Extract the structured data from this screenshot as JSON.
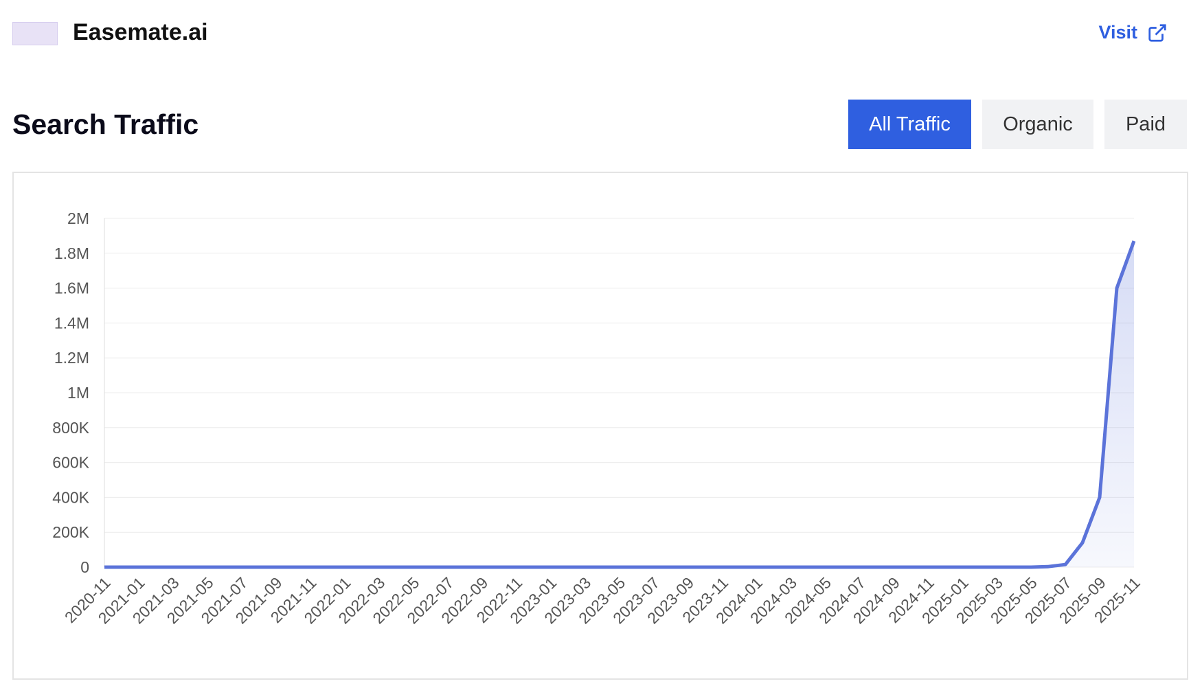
{
  "header": {
    "title": "Easemate.ai",
    "visit": "Visit"
  },
  "section_title": "Search Traffic",
  "tabs": [
    "All Traffic",
    "Organic",
    "Paid"
  ],
  "chart_data": {
    "type": "area",
    "color": "#5b73d9",
    "grid": true,
    "categories": [
      "2020-11",
      null,
      "2021-01",
      null,
      "2021-03",
      null,
      "2021-05",
      null,
      "2021-07",
      null,
      "2021-09",
      null,
      "2021-11",
      null,
      "2022-01",
      null,
      "2022-03",
      null,
      "2022-05",
      null,
      "2022-07",
      null,
      "2022-09",
      null,
      "2022-11",
      null,
      "2023-01",
      null,
      "2023-03",
      null,
      "2023-05",
      null,
      "2023-07",
      null,
      "2023-09",
      null,
      "2023-11",
      null,
      "2024-01",
      null,
      "2024-03",
      null,
      "2024-05",
      null,
      "2024-07",
      null,
      "2024-09",
      null,
      "2024-11",
      null,
      "2025-01",
      null,
      "2025-03",
      null,
      "2025-05",
      null,
      "2025-07",
      null,
      "2025-09",
      null,
      "2025-11"
    ],
    "values": [
      0,
      0,
      0,
      0,
      0,
      0,
      0,
      0,
      0,
      0,
      0,
      0,
      0,
      0,
      0,
      0,
      0,
      0,
      0,
      0,
      0,
      0,
      0,
      0,
      0,
      0,
      0,
      0,
      0,
      0,
      0,
      0,
      0,
      0,
      0,
      0,
      0,
      0,
      0,
      0,
      0,
      0,
      0,
      0,
      0,
      0,
      0,
      0,
      0,
      0,
      0,
      0,
      0,
      0,
      0,
      3000,
      15000,
      140000,
      400000,
      1600000,
      1870000
    ],
    "ylim": [
      0,
      2000000
    ],
    "yticks": [
      0,
      {
        "value": 200000,
        "label": "200K"
      },
      {
        "value": 400000,
        "label": "400K"
      },
      {
        "value": 600000,
        "label": "600K"
      },
      {
        "value": 800000,
        "label": "800K"
      },
      {
        "value": 1000000,
        "label": "1M"
      },
      {
        "value": 1200000,
        "label": "1.2M"
      },
      {
        "value": 1400000,
        "label": "1.4M"
      },
      {
        "value": 1600000,
        "label": "1.6M"
      },
      {
        "value": 1800000,
        "label": "1.8M"
      },
      {
        "value": 2000000,
        "label": "2M"
      }
    ]
  }
}
